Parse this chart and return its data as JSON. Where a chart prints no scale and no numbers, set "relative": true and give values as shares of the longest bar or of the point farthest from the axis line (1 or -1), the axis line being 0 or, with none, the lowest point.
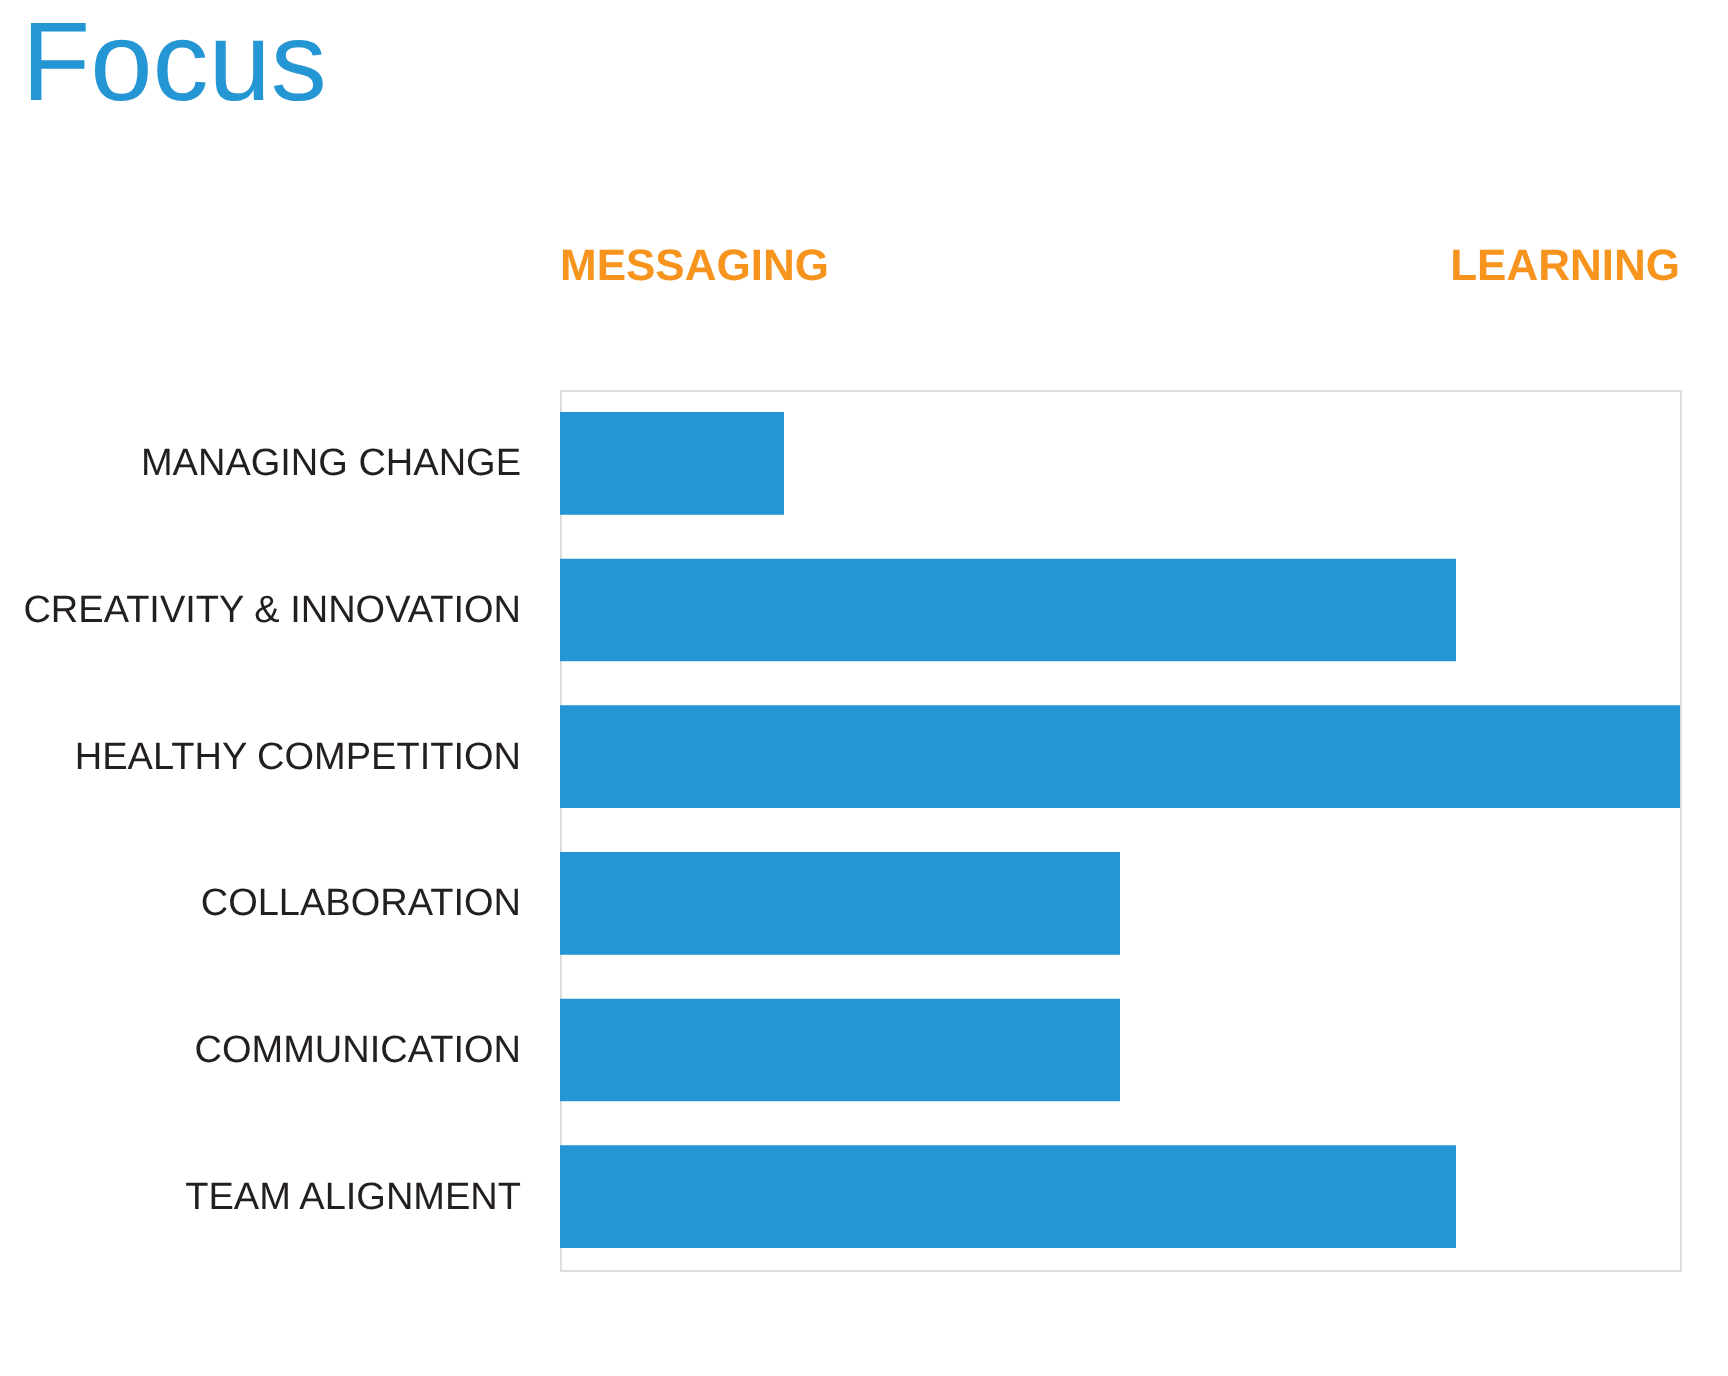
{
  "chart_data": {
    "type": "bar",
    "orientation": "horizontal",
    "relative": true,
    "title": "Focus",
    "categories": [
      "MANAGING CHANGE",
      "CREATIVITY & INNOVATION",
      "HEALTHY COMPETITION",
      "COLLABORATION",
      "COMMUNICATION",
      "TEAM ALIGNMENT"
    ],
    "values": [
      0.2,
      0.8,
      1,
      0.5,
      0.5,
      0.8
    ],
    "color": "#2596d4",
    "annotations": [
      "MESSAGING",
      "LEARNING"
    ]
  }
}
